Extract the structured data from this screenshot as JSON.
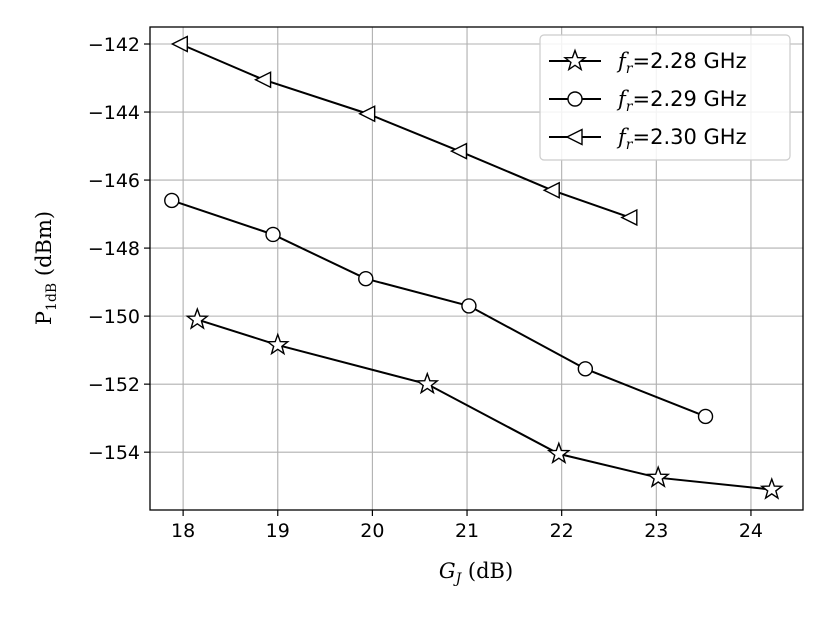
{
  "chart_data": {
    "type": "line",
    "xlabel": {
      "main": "G",
      "sub": "J",
      "unit": " (dB)"
    },
    "ylabel": {
      "main": "P",
      "sub": "1dB",
      "unit": " (dBm)"
    },
    "xlim": [
      17.65,
      24.55
    ],
    "ylim": [
      -155.7,
      -141.5
    ],
    "xticks": [
      18,
      19,
      20,
      21,
      22,
      23,
      24
    ],
    "yticks": [
      -154,
      -152,
      -150,
      -148,
      -146,
      -144,
      -142
    ],
    "ytick_labels": [
      "−154",
      "−152",
      "−150",
      "−148",
      "−146",
      "−144",
      "−142"
    ],
    "grid": true,
    "legend_position": "top-right",
    "series": [
      {
        "name": "f_r=2.28 GHz",
        "name_parts": {
          "main": "f",
          "sub": "r",
          "rest": "=2.28 GHz"
        },
        "marker": "star",
        "x": [
          18.15,
          19.0,
          20.58,
          21.97,
          23.02,
          24.22
        ],
        "y": [
          -150.1,
          -150.85,
          -152.0,
          -154.05,
          -154.75,
          -155.1
        ]
      },
      {
        "name": "f_r=2.29 GHz",
        "name_parts": {
          "main": "f",
          "sub": "r",
          "rest": "=2.29 GHz"
        },
        "marker": "circle",
        "x": [
          17.88,
          18.95,
          19.93,
          21.02,
          22.25,
          23.52
        ],
        "y": [
          -146.6,
          -147.6,
          -148.9,
          -149.7,
          -151.55,
          -152.95
        ]
      },
      {
        "name": "f_r=2.30 GHz",
        "name_parts": {
          "main": "f",
          "sub": "r",
          "rest": "=2.30 GHz"
        },
        "marker": "triangle-left",
        "x": [
          17.97,
          18.85,
          19.95,
          20.92,
          21.9,
          22.72
        ],
        "y": [
          -142.0,
          -143.05,
          -144.05,
          -145.15,
          -146.3,
          -147.1
        ]
      }
    ]
  }
}
